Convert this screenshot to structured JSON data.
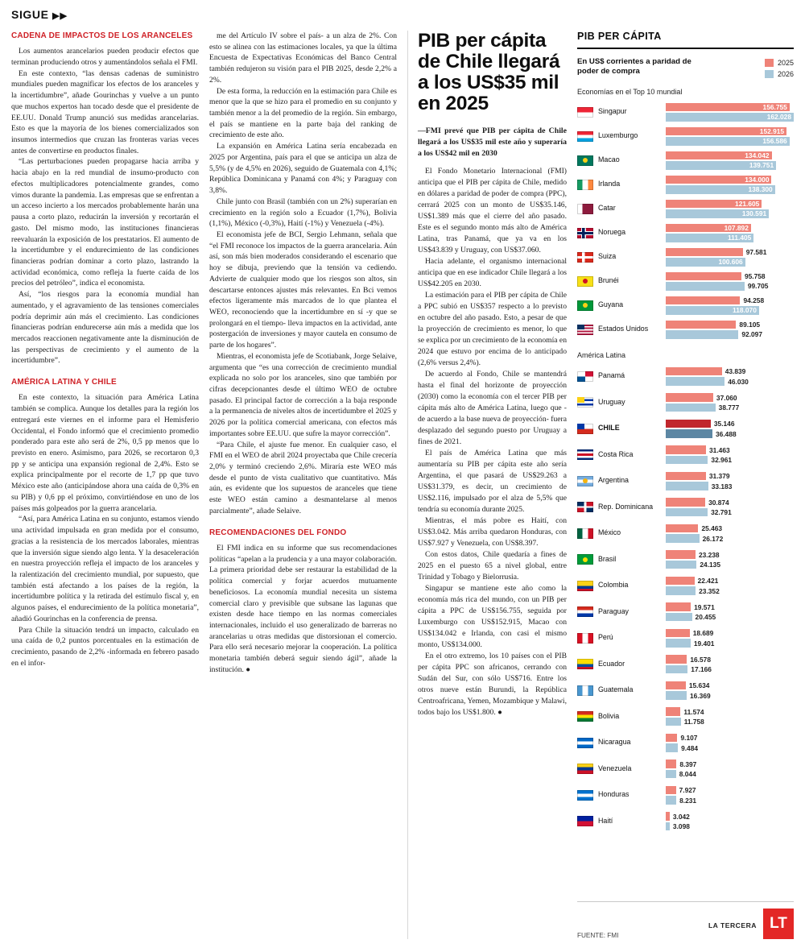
{
  "kicker": {
    "label": "SIGUE",
    "arrows": "▶▶"
  },
  "columns": {
    "col1": {
      "sections": [
        {
          "heading": "CADENA DE IMPACTOS DE LOS ARANCELES",
          "paragraphs": [
            "Los aumentos arancelarios pueden producir efectos que terminan produciendo otros y aumentándolos señala el FMI.",
            "En este contexto, “las densas cadenas de suministro mundiales pueden magnificar los efectos de los aranceles y la incertidumbre”, añade Gourinchas y vuelve a un punto que muchos expertos han tocado desde que el presidente de EE.UU. Donald Trump anunció sus medidas arancelarias. Esto es que la mayoría de los bienes comercializados son insumos intermedios que cruzan las fronteras varias veces antes de convertirse en productos finales.",
            "“Las perturbaciones pueden propagarse hacia arriba y hacia abajo en la red mundial de insumo-producto con efectos multiplicadores potencialmente grandes, como vimos durante la pandemia. Las empresas que se enfrentan a un acceso incierto a los mercados probablemente harán una pausa a corto plazo, reducirán la inversión y recortarán el gasto. Del mismo modo, las instituciones financieras reevaluarán la exposición de los prestatarios. El aumento de la incertidumbre y el endurecimiento de las condiciones financieras podrían dominar a corto plazo, lastrando la actividad económica, como refleja la fuerte caída de los precios del petróleo”, indica el economista.",
            "Así, “los riesgos para la economía mundial han aumentado, y el agravamiento de las tensiones comerciales podría deprimir aún más el crecimiento. Las condiciones financieras podrían endurecerse aún más a medida que los mercados reaccionen negativamente ante la disminución de las perspectivas de crecimiento y el aumento de la incertidumbre”."
          ]
        },
        {
          "heading": "AMÉRICA LATINA Y CHILE",
          "paragraphs": [
            "En este contexto, la situación para América Latina también se complica. Aunque los detalles para la región los entregará este viernes en el informe para el Hemisferio Occidental, el Fondo informó que el crecimiento promedio ponderado para este año será de 2%, 0,5 pp menos que lo previsto en enero. Asimismo, para 2026, se recortaron 0,3 pp y se anticipa una expansión regional de 2,4%. Esto se explica principalmente por el recorte de 1,7 pp que tuvo México este año (anticipándose ahora una caída de 0,3% en su PIB) y 0,6 pp el próximo, convirtiéndose en uno de los países más golpeados por la guerra arancelaria.",
            "“Así, para América Latina en su conjunto, estamos viendo una actividad impulsada en gran medida por el consumo, gracias a la resistencia de los mercados laborales, mientras que la inversión sigue siendo algo lenta. Y la desaceleración en nuestra proyección refleja el impacto de los aranceles y la ralentización del crecimiento mundial, por supuesto, que también está afectando a los países de la región, la incertidumbre política y la retirada del estímulo fiscal y, en algunos países, el endurecimiento de la política monetaria”, añadió Gourinchas en la conferencia de prensa.",
            "Para Chile la situación tendrá un impacto, calculado en una caída de 0,2 puntos porcentuales en la estimación de crecimiento, pasando de 2,2% -informada en febrero pasado en el infor-"
          ]
        }
      ]
    },
    "col2": {
      "sections": [
        {
          "heading": "",
          "paragraphs": [
            "me del Artículo IV sobre el país- a un alza de 2%. Con esto se alinea con las estimaciones locales, ya que la última Encuesta de Expectativas Económicas del Banco Central también redujeron su visión para el PIB 2025, desde 2,2% a 2%.",
            "De esta forma, la reducción en la estimación para Chile es menor que la que se hizo para el promedio en su conjunto y también menor a la del promedio de la región. Sin embargo, el país se mantiene en la parte baja del ranking de crecimiento de este año.",
            "La expansión en América Latina sería encabezada en 2025 por Argentina, país para el que se anticipa un alza de 5,5% (y de 4,5% en 2026), seguido de Guatemala con 4,1%; República Dominicana y Panamá con 4%; y Paraguay con 3,8%.",
            "Chile junto con Brasil (también con un 2%) superarían en crecimiento en la región solo a Ecuador (1,7%), Bolivia (1,1%), México (-0,3%), Haití (-1%) y Venezuela (-4%).",
            "El economista jefe de BCI, Sergio Lehmann, señala que “el FMI reconoce los impactos de la guerra arancelaria. Aún así, son más bien moderados considerando el escenario que hoy se dibuja, previendo que la tensión va cediendo. Advierte de cualquier modo que los riesgos son altos, sin descartarse entonces ajustes más relevantes. En Bci vemos efectos ligeramente más marcados de lo que plantea el WEO, reconociendo que la incertidumbre en sí -y que se prolongará en el tiempo- lleva impactos en la actividad, ante postergación de inversiones y mayor cautela en consumo de parte de los hogares”.",
            "Mientras, el economista jefe de Scotiabank, Jorge Selaive, argumenta que “es una corrección de crecimiento mundial explicada no solo por los aranceles, sino que también por cifras decepcionantes desde el último WEO de octubre pasado. El principal factor de corrección a la baja responde a la permanencia de niveles altos de incertidumbre el 2025 y 2026 por la política comercial americana, con efectos más importantes sobre EE.UU. que sufre la mayor corrección”.",
            "“Para Chile, el ajuste fue menor. En cualquier caso, el FMI en el WEO de abril 2024 proyectaba que Chile crecería 2,0% y terminó creciendo 2,6%. Miraría este WEO más desde el punto de vista cualitativo que cuantitativo. Más aún, es evidente que los supuestos de aranceles que tiene este WEO están camino a desmantelarse al menos parcialmente”, añade Selaive."
          ]
        },
        {
          "heading": "RECOMENDACIONES DEL FONDO",
          "paragraphs": [
            "El FMI indica en su informe que sus recomendaciones políticas “apelan a la prudencia y a una mayor colaboración. La primera prioridad debe ser restaurar la estabilidad de la política comercial y forjar acuerdos mutuamente beneficiosos. La economía mundial necesita un sistema comercial claro y previsible que subsane las lagunas que existen desde hace tiempo en las normas comerciales internacionales, incluido el uso generalizado de barreras no arancelarias u otras medidas que distorsionan el comercio. Para ello será necesario mejorar la cooperación. La política monetaria también deberá seguir siendo ágil”, añade la institución. ●"
          ]
        }
      ]
    }
  },
  "article": {
    "headline": "PIB per cápita de Chile llegará a los US$35 mil en 2025",
    "lead": "—FMI prevé que PIB per cápita de Chile llegará a los US$35 mil este año y superaría a los US$42 mil en 2030",
    "paragraphs": [
      "El Fondo Monetario Internacional (FMI) anticipa que el PIB per cápita de Chile, medido en dólares a paridad de poder de compra (PPC), cerrará 2025 con un monto de US$35.146, US$1.389 más que el cierre del año pasado. Este es el segundo monto más alto de América Latina, tras Panamá, que ya va en los US$43.839 y Uruguay, con US$37.060.",
      "Hacia adelante, el organismo internacional anticipa que en ese indicador Chile llegará a los US$42.205 en 2030.",
      "La estimación para el PIB per cápita de Chile a PPC subió en US$357 respecto a lo previsto en octubre del año pasado. Esto, a pesar de que la proyección de crecimiento es menor, lo que se explica por un crecimiento de la economía en 2024 que estuvo por encima de lo anticipado (2,6% versus 2,4%).",
      "De acuerdo al Fondo, Chile se mantendrá hasta el final del horizonte de proyección (2030) como la economía con el tercer PIB per cápita más alto de América Latina, luego que -de acuerdo a la base nueva de proyección- fuera desplazado del segundo puesto por Uruguay a fines de 2021.",
      "El país de América Latina que más aumentaría su PIB per cápita este año sería Argentina, el que pasará de US$29.263 a US$31.379, es decir, un crecimiento de US$2.116, impulsado por el alza de 5,5% que tendría su economía durante 2025.",
      "Mientras, el más pobre es Haití, con US$3.042. Más arriba quedaron Honduras, con US$7.927 y Venezuela, con US$8.397.",
      "Con estos datos, Chile quedaría a fines de 2025 en el puesto 65 a nivel global, entre Trinidad y Tobago y Bielorrusia.",
      "Singapur se mantiene este año como la economía más rica del mundo, con un PIB per cápita a PPC de US$156.755, seguida por Luxemburgo con US$152.915, Macao con US$134.042 e Irlanda, con casi el mismo monto, US$134.000.",
      "En el otro extremo, los 10 países con el PIB per cápita PPC son africanos, cerrando con Sudán del Sur, con sólo US$716. Entre los otros nueve están Burundi, la República Centroafricana, Yemen, Mozambique y Malawi, todos bajo los US$1.800. ●"
    ]
  },
  "chart_data": {
    "type": "bar",
    "title": "PIB PER CÁPITA",
    "subtitle": "En US$ corrientes a paridad de poder de compra",
    "legend": [
      {
        "label": "2025",
        "color": "#ef8378"
      },
      {
        "label": "2026",
        "color": "#a8c8da"
      }
    ],
    "highlight_colors": [
      "#c1272d",
      "#5d87a3"
    ],
    "source": "FUENTE: FMI",
    "groups": [
      {
        "label": "Economías en el Top 10 mundial",
        "axis_max": 162028,
        "label_inside_min_pct": 62,
        "rows": [
          {
            "name": "Singapur",
            "values": [
              156755,
              162028
            ],
            "flag": {
              "p": "h",
              "c": [
                "#ee2536",
                "#ffffff"
              ]
            }
          },
          {
            "name": "Luxemburgo",
            "values": [
              152915,
              156586
            ],
            "flag": {
              "p": "h",
              "c": [
                "#ee2536",
                "#ffffff",
                "#00a2e1"
              ]
            }
          },
          {
            "name": "Macao",
            "values": [
              134042,
              139751
            ],
            "flag": {
              "p": "h",
              "c": [
                "#00785e"
              ],
              "e": "#fbd116"
            }
          },
          {
            "name": "Irlanda",
            "values": [
              134000,
              138300
            ],
            "flag": {
              "p": "v",
              "c": [
                "#169b62",
                "#ffffff",
                "#ff883e"
              ]
            }
          },
          {
            "name": "Catar",
            "values": [
              121605,
              130591
            ],
            "flag": {
              "p": "v",
              "c": [
                "#ffffff",
                "#8d1b3d",
                "#8d1b3d"
              ]
            }
          },
          {
            "name": "Noruega",
            "values": [
              107892,
              111405
            ],
            "flag": {
              "p": "cross",
              "c": [
                "#ba0c2f",
                "#ffffff",
                "#00205b"
              ]
            }
          },
          {
            "name": "Suiza",
            "values": [
              97581,
              100606
            ],
            "flag": {
              "p": "cross",
              "c": [
                "#da291c",
                "#ffffff"
              ]
            }
          },
          {
            "name": "Brunéi",
            "values": [
              95758,
              99705
            ],
            "flag": {
              "p": "h",
              "c": [
                "#f7e017"
              ],
              "e": "#cf1126"
            }
          },
          {
            "name": "Guyana",
            "values": [
              94258,
              118070
            ],
            "flag": {
              "p": "h",
              "c": [
                "#009739"
              ],
              "e": "#fcd116"
            }
          },
          {
            "name": "Estados Unidos",
            "values": [
              89105,
              92097
            ],
            "flag": {
              "p": "h",
              "c": [
                "#b31942",
                "#ffffff",
                "#b31942",
                "#ffffff",
                "#b31942",
                "#ffffff",
                "#b31942"
              ],
              "k": "#0a3161"
            }
          }
        ]
      },
      {
        "label": "América Latina",
        "axis_max": 100000,
        "label_inside_min_pct": 999,
        "rows": [
          {
            "name": "Panamá",
            "values": [
              43839,
              46030
            ],
            "flag": {
              "p": "q",
              "c": [
                "#d21034",
                "#ffffff",
                "#005293",
                "#ffffff"
              ]
            }
          },
          {
            "name": "Uruguay",
            "values": [
              37060,
              38777
            ],
            "flag": {
              "p": "h",
              "c": [
                "#ffffff",
                "#0038a8",
                "#ffffff",
                "#0038a8",
                "#ffffff"
              ],
              "k": "#fcd116"
            }
          },
          {
            "name": "CHILE",
            "values": [
              35146,
              36488
            ],
            "highlight": true,
            "flag": {
              "p": "h",
              "c": [
                "#ffffff",
                "#d52b1e"
              ],
              "k": "#0039a6"
            }
          },
          {
            "name": "Costa Rica",
            "values": [
              31463,
              32961
            ],
            "flag": {
              "p": "h",
              "c": [
                "#002b7f",
                "#ffffff",
                "#ce1126",
                "#ffffff",
                "#002b7f"
              ]
            }
          },
          {
            "name": "Argentina",
            "values": [
              31379,
              33183
            ],
            "flag": {
              "p": "h",
              "c": [
                "#74acdf",
                "#ffffff",
                "#74acdf"
              ],
              "e": "#f6b40e"
            }
          },
          {
            "name": "Rep. Dominicana",
            "values": [
              30874,
              32791
            ],
            "flag": {
              "p": "q",
              "c": [
                "#ce1126",
                "#002d62",
                "#ce1126",
                "#002d62"
              ],
              "x": "#ffffff"
            }
          },
          {
            "name": "México",
            "values": [
              25463,
              26172
            ],
            "flag": {
              "p": "v",
              "c": [
                "#006341",
                "#ffffff",
                "#ce1126"
              ]
            }
          },
          {
            "name": "Brasil",
            "values": [
              23238,
              24135
            ],
            "flag": {
              "p": "h",
              "c": [
                "#009b3a"
              ],
              "e": "#fedf00"
            }
          },
          {
            "name": "Colombia",
            "values": [
              22421,
              23352
            ],
            "flag": {
              "p": "h",
              "c": [
                "#fcd116",
                "#fcd116",
                "#003893",
                "#ce1126"
              ]
            }
          },
          {
            "name": "Paraguay",
            "values": [
              19571,
              20455
            ],
            "flag": {
              "p": "h",
              "c": [
                "#d52b1e",
                "#ffffff",
                "#0038a8"
              ]
            }
          },
          {
            "name": "Perú",
            "values": [
              18689,
              19401
            ],
            "flag": {
              "p": "v",
              "c": [
                "#d91023",
                "#ffffff",
                "#d91023"
              ]
            }
          },
          {
            "name": "Ecuador",
            "values": [
              16578,
              17166
            ],
            "flag": {
              "p": "h",
              "c": [
                "#ffdd00",
                "#ffdd00",
                "#034ea2",
                "#ce1126"
              ]
            }
          },
          {
            "name": "Guatemala",
            "values": [
              15634,
              16369
            ],
            "flag": {
              "p": "v",
              "c": [
                "#4997d0",
                "#ffffff",
                "#4997d0"
              ]
            }
          },
          {
            "name": "Bolivia",
            "values": [
              11574,
              11758
            ],
            "flag": {
              "p": "h",
              "c": [
                "#d52b1e",
                "#f9e300",
                "#007934"
              ]
            }
          },
          {
            "name": "Nicaragua",
            "values": [
              9107,
              9484
            ],
            "flag": {
              "p": "h",
              "c": [
                "#0067c6",
                "#ffffff",
                "#0067c6"
              ]
            }
          },
          {
            "name": "Venezuela",
            "values": [
              8397,
              8044
            ],
            "flag": {
              "p": "h",
              "c": [
                "#fcd116",
                "#003893",
                "#ce1126"
              ]
            }
          },
          {
            "name": "Honduras",
            "values": [
              7927,
              8231
            ],
            "flag": {
              "p": "h",
              "c": [
                "#0073cf",
                "#ffffff",
                "#0073cf"
              ]
            }
          },
          {
            "name": "Haití",
            "values": [
              3042,
              3098
            ],
            "flag": {
              "p": "h",
              "c": [
                "#00209f",
                "#d21034"
              ]
            }
          }
        ]
      }
    ]
  },
  "footer": {
    "brand": "LA TERCERA",
    "logo": "LT"
  }
}
